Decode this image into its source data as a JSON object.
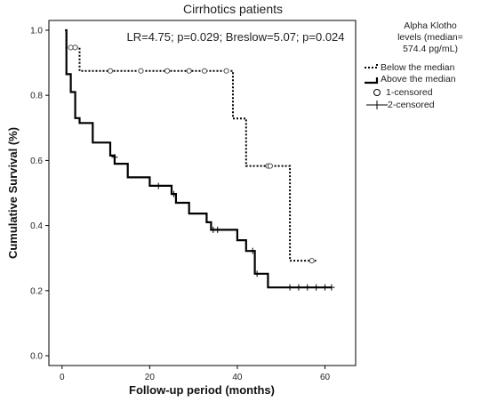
{
  "chart_data": {
    "type": "line",
    "title": "Cirrhotics patients",
    "xlabel": "Follow-up period (months)",
    "ylabel": "Cumulative Survival (%)",
    "xlim": [
      -3,
      67
    ],
    "ylim": [
      -0.03,
      1.03
    ],
    "xticks": [
      0,
      20,
      40,
      60
    ],
    "yticks": [
      0.0,
      0.2,
      0.4,
      0.6,
      0.8,
      1.0
    ],
    "grid": false,
    "annotation": "LR=4.75; p=0.029; Breslow=5.07; p=0.024",
    "legend": {
      "title_lines": [
        "Alpha Klotho",
        "levels (median=",
        "574.4 pg/mL)"
      ],
      "placement": "right",
      "entries": [
        "Below the median",
        "Above the median",
        "1-censored",
        "2-censored"
      ]
    },
    "series": [
      {
        "name": "Below the median",
        "style": "dotted",
        "steps": [
          [
            0.7,
            1.0
          ],
          [
            1.0,
            0.947
          ],
          [
            4.0,
            0.875
          ],
          [
            39.0,
            0.729
          ],
          [
            42.0,
            0.583
          ],
          [
            52.0,
            0.292
          ],
          [
            58.0,
            0.292
          ]
        ],
        "censored": [
          [
            2.0,
            0.947
          ],
          [
            3.0,
            0.947
          ],
          [
            11.0,
            0.875
          ],
          [
            18.0,
            0.875
          ],
          [
            24.0,
            0.875
          ],
          [
            29.0,
            0.875
          ],
          [
            32.5,
            0.875
          ],
          [
            37.5,
            0.875
          ],
          [
            47.0,
            0.583
          ],
          [
            47.5,
            0.583
          ],
          [
            57.0,
            0.292
          ]
        ]
      },
      {
        "name": "Above the median",
        "style": "solid",
        "steps": [
          [
            0.7,
            1.0
          ],
          [
            1.0,
            0.865
          ],
          [
            2.0,
            0.81
          ],
          [
            3.0,
            0.73
          ],
          [
            4.0,
            0.715
          ],
          [
            7.0,
            0.655
          ],
          [
            11.0,
            0.615
          ],
          [
            12.0,
            0.59
          ],
          [
            15.0,
            0.548
          ],
          [
            20.0,
            0.522
          ],
          [
            25.0,
            0.497
          ],
          [
            26.0,
            0.47
          ],
          [
            29.0,
            0.437
          ],
          [
            33.0,
            0.41
          ],
          [
            34.0,
            0.387
          ],
          [
            40.0,
            0.355
          ],
          [
            42.0,
            0.322
          ],
          [
            44.0,
            0.252
          ],
          [
            47.0,
            0.21
          ],
          [
            61.5,
            0.21
          ]
        ],
        "censored": [
          [
            12.0,
            0.61
          ],
          [
            22.0,
            0.522
          ],
          [
            25.5,
            0.497
          ],
          [
            34.5,
            0.387
          ],
          [
            35.5,
            0.387
          ],
          [
            43.5,
            0.322
          ],
          [
            44.5,
            0.252
          ],
          [
            52.0,
            0.21
          ],
          [
            54.0,
            0.21
          ],
          [
            56.0,
            0.21
          ],
          [
            58.0,
            0.21
          ],
          [
            60.0,
            0.21
          ],
          [
            61.5,
            0.21
          ]
        ]
      }
    ]
  }
}
